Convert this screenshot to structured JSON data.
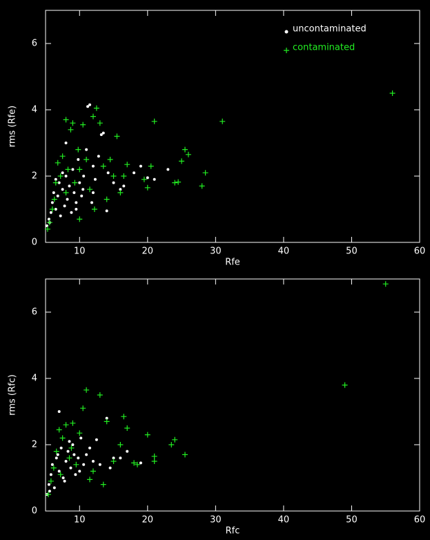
{
  "chart_data": [
    {
      "type": "scatter",
      "xlabel": "Rfe",
      "ylabel": "rms (Rfe)",
      "xlim": [
        5,
        60
      ],
      "ylim": [
        0,
        7
      ],
      "xticks": [
        10,
        20,
        30,
        40,
        50,
        60
      ],
      "yticks": [
        0,
        2,
        4,
        6
      ],
      "legend": "upper right",
      "series": [
        {
          "name": "uncontaminated",
          "color": "#ffffff",
          "marker": "circle",
          "x": [
            5.2,
            5.5,
            5.8,
            6,
            6.2,
            6.5,
            6.8,
            7,
            7.2,
            7.5,
            7.8,
            8,
            8.2,
            8.5,
            8.8,
            9,
            9.2,
            9.5,
            9.8,
            10,
            10.3,
            10.6,
            11,
            11.2,
            11.5,
            12,
            12.3,
            12.8,
            13.2,
            13.5,
            14,
            14.2,
            15,
            16,
            16.5,
            18,
            19,
            20,
            21,
            23,
            8,
            11.8,
            7.5,
            6.5,
            9.5,
            10.5,
            12,
            5.6
          ],
          "values": [
            0.5,
            0.7,
            0.9,
            1.2,
            1.5,
            1.0,
            1.4,
            1.8,
            0.8,
            1.6,
            1.1,
            2.0,
            1.3,
            1.7,
            0.9,
            2.2,
            1.5,
            1.2,
            2.5,
            1.8,
            1.4,
            2.0,
            2.8,
            4.1,
            4.15,
            2.3,
            1.9,
            2.6,
            3.25,
            3.3,
            0.95,
            2.1,
            1.8,
            1.6,
            1.7,
            2.1,
            2.3,
            1.95,
            1.9,
            2.2,
            3.0,
            1.2,
            2.1,
            1.9,
            1.0,
            1.6,
            1.5,
            0.6
          ]
        },
        {
          "name": "contaminated",
          "color": "#22ee22",
          "marker": "plus",
          "x": [
            5.3,
            5.6,
            6,
            6.3,
            6.8,
            7.2,
            7.5,
            8,
            8.3,
            8.7,
            9,
            9.3,
            9.8,
            10,
            10.5,
            11,
            11.5,
            12,
            12.5,
            13,
            13.5,
            14,
            14.5,
            15,
            15.5,
            16,
            16.5,
            17,
            19.5,
            20,
            20.5,
            21,
            24,
            24.5,
            25,
            25.5,
            26,
            28,
            28.5,
            31,
            56,
            8,
            10,
            12.2,
            6.5
          ],
          "values": [
            0.4,
            0.6,
            1.0,
            1.3,
            2.4,
            2.0,
            2.6,
            3.7,
            2.2,
            3.4,
            3.6,
            1.8,
            2.8,
            0.7,
            3.55,
            2.5,
            1.6,
            3.8,
            4.05,
            3.6,
            2.3,
            1.3,
            2.5,
            2.0,
            3.2,
            1.5,
            2.0,
            2.35,
            1.9,
            1.65,
            2.3,
            3.65,
            1.8,
            1.82,
            2.45,
            2.8,
            2.65,
            1.7,
            2.1,
            3.65,
            4.5,
            1.5,
            2.2,
            1.0,
            1.8
          ]
        }
      ]
    },
    {
      "type": "scatter",
      "xlabel": "Rfc",
      "ylabel": "rms (Rfc)",
      "xlim": [
        5,
        60
      ],
      "ylim": [
        0,
        7
      ],
      "xticks": [
        10,
        20,
        30,
        40,
        50,
        60
      ],
      "yticks": [
        0,
        2,
        4,
        6
      ],
      "series": [
        {
          "color": "#ffffff",
          "marker": "circle",
          "x": [
            5.2,
            5.5,
            5.8,
            6,
            6.3,
            6.6,
            7,
            7,
            7.3,
            7.6,
            8,
            8.3,
            8.7,
            9,
            9.4,
            9.8,
            10.2,
            10.6,
            11,
            11.5,
            12,
            12.5,
            13,
            14,
            14.5,
            15,
            16,
            17,
            19,
            6.8,
            8.5,
            10,
            5.6,
            7.8,
            9.2
          ],
          "values": [
            0.5,
            0.8,
            1.1,
            1.4,
            0.7,
            1.6,
            3.0,
            1.2,
            1.9,
            1.0,
            1.5,
            1.8,
            1.3,
            2.0,
            1.1,
            1.6,
            2.2,
            1.4,
            1.7,
            1.9,
            1.5,
            2.15,
            1.4,
            2.8,
            1.3,
            1.6,
            1.6,
            1.8,
            1.45,
            1.7,
            2.1,
            1.2,
            0.6,
            0.9,
            1.7
          ]
        },
        {
          "color": "#22ee22",
          "marker": "plus",
          "x": [
            5.4,
            5.8,
            6.2,
            6.6,
            7,
            7.5,
            8,
            8.5,
            9,
            9.5,
            10,
            10.5,
            11,
            11.5,
            12,
            13,
            13.5,
            14,
            15,
            16,
            16.5,
            17,
            18,
            18.5,
            20,
            21,
            21,
            23.5,
            24,
            25.5,
            49,
            55,
            7.2,
            8.8
          ],
          "values": [
            0.5,
            0.9,
            1.3,
            1.8,
            2.45,
            2.2,
            2.6,
            1.6,
            2.65,
            1.4,
            2.35,
            3.1,
            3.65,
            0.95,
            1.2,
            3.5,
            0.8,
            2.7,
            1.5,
            2.0,
            2.85,
            2.5,
            1.45,
            1.4,
            2.3,
            1.65,
            1.5,
            2.0,
            2.15,
            1.7,
            3.8,
            6.85,
            1.1,
            1.9
          ]
        }
      ]
    }
  ]
}
